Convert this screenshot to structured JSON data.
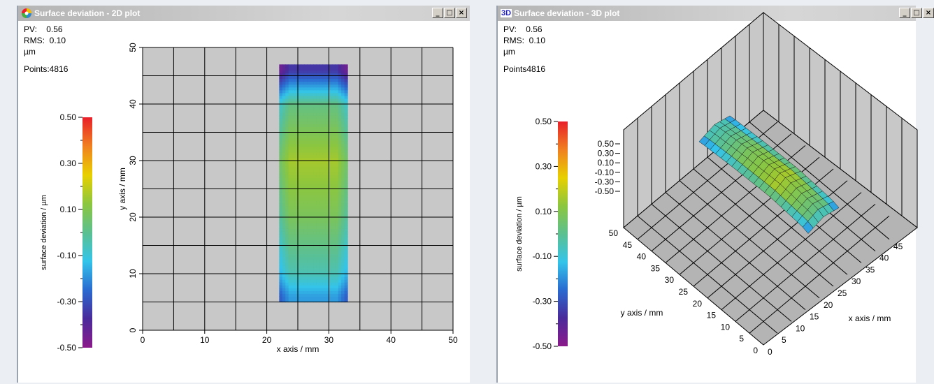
{
  "windows": {
    "plot2d": {
      "title": "Surface deviation - 2D plot",
      "icon": "color-wheel-icon",
      "buttons": [
        "_",
        "□",
        "×"
      ],
      "stats": {
        "pv_label": "PV:",
        "pv": "0.56",
        "rms_label": "RMS:",
        "rms": "0.10",
        "unit": "µm",
        "points": "Points:4816"
      }
    },
    "plot3d": {
      "title": "Surface deviation - 3D plot",
      "icon_text": "3D",
      "buttons": [
        "_",
        "□",
        "×"
      ],
      "stats": {
        "pv_label": "PV:",
        "pv": "0.56",
        "rms_label": "RMS:",
        "rms": "0.10",
        "unit": "µm",
        "points": "Points4816"
      }
    }
  },
  "colors": {
    "titlebar_text": "#ffffff",
    "plot_background": "#c8c8c8",
    "colorscale": [
      "#8b1a8b",
      "#4a2a9a",
      "#2a6ad0",
      "#33c4ea",
      "#5cc090",
      "#8cc63f",
      "#e8d000",
      "#f08020",
      "#e8202a"
    ]
  },
  "chart_data": [
    {
      "type": "heatmap",
      "title": "Surface deviation - 2D plot",
      "xlabel": "x axis / mm",
      "ylabel": "y axis / mm",
      "xlim": [
        0,
        50
      ],
      "ylim": [
        0,
        50
      ],
      "x_ticks": [
        "0",
        "10",
        "20",
        "30",
        "40",
        "50"
      ],
      "y_ticks": [
        "0",
        "10",
        "20",
        "30",
        "40",
        "50"
      ],
      "grid": true,
      "data_region": {
        "x": [
          22,
          33
        ],
        "y": [
          5,
          47
        ]
      },
      "values_um_along_y": {
        "y": [
          6,
          10,
          20,
          30,
          40,
          46
        ],
        "deviation": [
          -0.18,
          -0.05,
          0.08,
          0.16,
          0.02,
          -0.35
        ]
      },
      "colorbar": {
        "label": "surface deviation / µm",
        "range": [
          -0.5,
          0.5
        ],
        "ticks": [
          "0.50",
          "0.30",
          "0.10",
          "-0.10",
          "-0.30",
          "-0.50"
        ]
      }
    },
    {
      "type": "surface",
      "title": "Surface deviation - 3D plot",
      "xlabel": "x axis / mm",
      "ylabel": "y axis / mm",
      "x_ticks": [
        "0",
        "5",
        "10",
        "15",
        "20",
        "25",
        "30",
        "35",
        "40",
        "45"
      ],
      "y_ticks": [
        "0",
        "5",
        "10",
        "15",
        "20",
        "25",
        "30",
        "35",
        "40",
        "45",
        "50"
      ],
      "z_ticks": [
        "0.50",
        "0.30",
        "0.10",
        "-0.10",
        "-0.30",
        "-0.50"
      ],
      "colorbar": {
        "label": "surface deviation / µm",
        "range": [
          -0.5,
          0.5
        ],
        "ticks": [
          "0.50",
          "0.30",
          "0.10",
          "-0.10",
          "-0.30",
          "-0.50"
        ]
      }
    }
  ]
}
